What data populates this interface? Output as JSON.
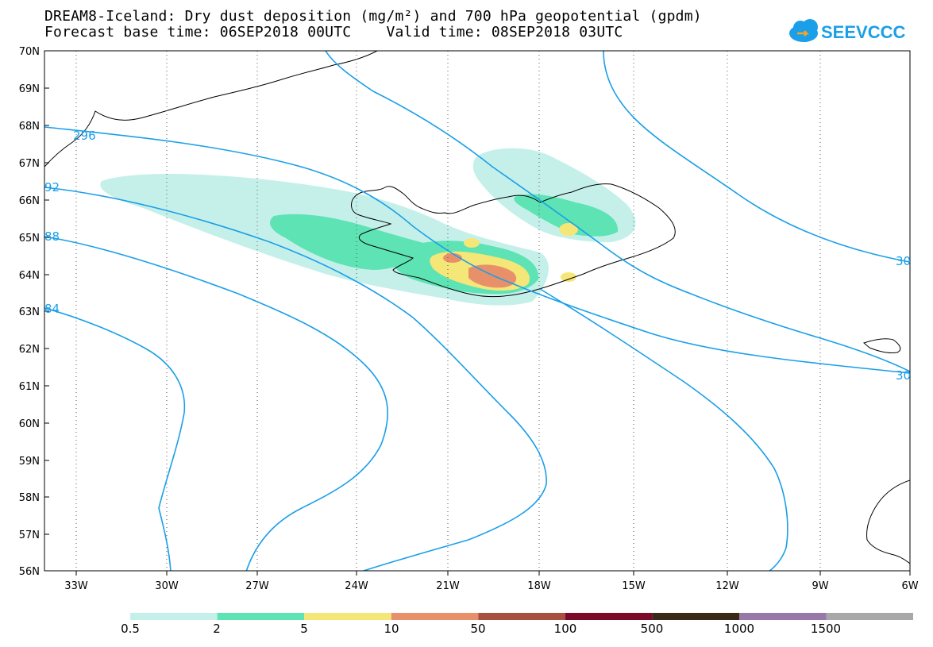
{
  "header": {
    "title_line1": "DREAM8-Iceland: Dry dust deposition (mg/m²) and 700 hPa geopotential (gpdm)",
    "title_line2": "Forecast base time: 06SEP2018 00UTC    Valid time: 08SEP2018 03UTC",
    "logo_text": "SEEVCCC"
  },
  "axes": {
    "lat_labels": [
      "70N",
      "69N",
      "68N",
      "67N",
      "66N",
      "65N",
      "64N",
      "63N",
      "62N",
      "61N",
      "60N",
      "59N",
      "58N",
      "57N",
      "56N"
    ],
    "lon_labels": [
      "33W",
      "30W",
      "27W",
      "24W",
      "21W",
      "18W",
      "15W",
      "12W",
      "9W",
      "6W"
    ]
  },
  "contour_labels": [
    "296",
    "92",
    "88",
    "84",
    "30",
    "30"
  ],
  "legend": {
    "labels": [
      "0.5",
      "2",
      "5",
      "10",
      "50",
      "100",
      "500",
      "1000",
      "1500"
    ],
    "colors": [
      "#c5f0ea",
      "#5ee3b5",
      "#f5e678",
      "#e8906a",
      "#a85040",
      "#7a0a28",
      "#3a2818",
      "#9878a8",
      "#a8a8a8"
    ]
  },
  "colors": {
    "contour": "#1a9fe8",
    "dust_light": "#c5f0ea",
    "dust_green": "#5ee3b5",
    "dust_yellow": "#f5e678",
    "dust_orange": "#e8906a"
  }
}
